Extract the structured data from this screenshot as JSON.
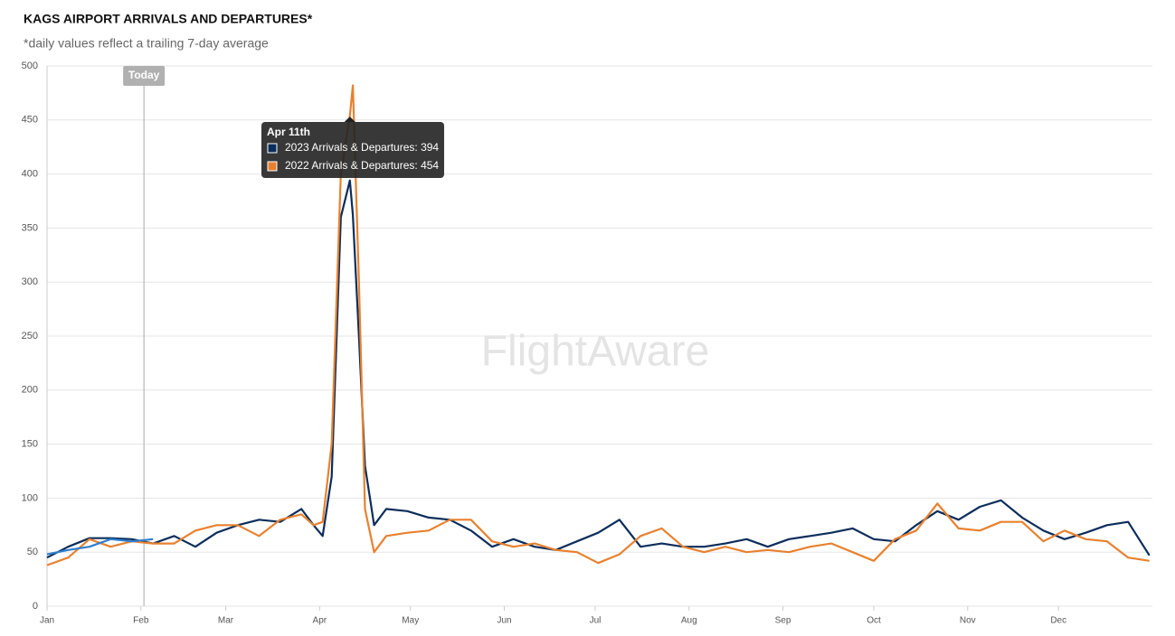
{
  "chart_data": {
    "type": "line",
    "title": "KAGS AIRPORT ARRIVALS AND DEPARTURES*",
    "subtitle": "*daily values reflect a trailing 7-day average",
    "watermark": "FlightAware",
    "x": [
      0,
      7,
      14,
      21,
      28,
      35,
      42,
      49,
      56,
      63,
      70,
      77,
      84,
      88,
      91,
      94,
      97,
      100,
      101,
      103,
      105,
      108,
      112,
      119,
      126,
      133,
      140,
      147,
      154,
      161,
      168,
      175,
      182,
      189,
      196,
      203,
      210,
      217,
      224,
      231,
      238,
      245,
      252,
      259,
      266,
      273,
      280,
      287,
      294,
      301,
      308,
      315,
      322,
      329,
      336,
      343,
      350,
      357,
      364
    ],
    "series": [
      {
        "color": "#0b2d5b",
        "values": [
          45,
          55,
          63,
          63,
          62,
          58,
          65,
          55,
          68,
          75,
          80,
          78,
          90,
          75,
          65,
          120,
          360,
          394,
          362,
          250,
          130,
          75,
          90,
          88,
          82,
          80,
          70,
          55,
          62,
          55,
          52,
          60,
          68,
          80,
          55,
          58,
          55,
          55,
          58,
          62,
          55,
          62,
          65,
          68,
          72,
          62,
          60,
          75,
          88,
          80,
          92,
          98,
          82,
          70,
          62,
          68,
          75,
          78,
          47
        ]
      },
      {
        "color": "#e8812f",
        "values": [
          38,
          45,
          62,
          55,
          60,
          58,
          58,
          70,
          75,
          75,
          65,
          80,
          85,
          75,
          78,
          150,
          400,
          454,
          482,
          300,
          90,
          50,
          65,
          68,
          70,
          80,
          80,
          60,
          55,
          58,
          52,
          50,
          40,
          48,
          65,
          72,
          55,
          50,
          55,
          50,
          52,
          50,
          55,
          58,
          50,
          42,
          62,
          70,
          95,
          72,
          70,
          78,
          78,
          60,
          70,
          62,
          60,
          45,
          42
        ]
      },
      {
        "color": "#2f7fd0",
        "values": [
          48,
          52,
          55,
          62,
          60,
          62,
          null,
          null,
          null,
          null,
          null,
          null,
          null,
          null,
          null,
          null,
          null,
          null,
          null,
          null,
          null,
          null,
          null,
          null,
          null,
          null,
          null,
          null,
          null,
          null,
          null,
          null,
          null,
          null,
          null,
          null,
          null,
          null,
          null,
          null,
          null,
          null,
          null,
          null,
          null,
          null,
          null,
          null,
          null,
          null,
          null,
          null,
          null,
          null,
          null,
          null,
          null,
          null,
          null
        ]
      }
    ],
    "xlim": [
      0,
      365
    ],
    "xticks": [
      {
        "value": 0,
        "label": "Jan"
      },
      {
        "value": 31,
        "label": "Feb"
      },
      {
        "value": 59,
        "label": "Mar"
      },
      {
        "value": 90,
        "label": "Apr"
      },
      {
        "value": 120,
        "label": "May"
      },
      {
        "value": 151,
        "label": "Jun"
      },
      {
        "value": 181,
        "label": "Jul"
      },
      {
        "value": 212,
        "label": "Aug"
      },
      {
        "value": 243,
        "label": "Sep"
      },
      {
        "value": 273,
        "label": "Oct"
      },
      {
        "value": 304,
        "label": "Nov"
      },
      {
        "value": 334,
        "label": "Dec"
      }
    ],
    "ylim": [
      0,
      500
    ],
    "yticks": [
      0,
      50,
      100,
      150,
      200,
      250,
      300,
      350,
      400,
      450,
      500
    ],
    "grid": true,
    "today": {
      "label": "Today",
      "x": 32
    },
    "tooltip": {
      "title": "Apr 11th",
      "x": 100,
      "rows": [
        "2023 Arrivals & Departures: 394",
        "2022 Arrivals & Departures: 454"
      ]
    }
  }
}
